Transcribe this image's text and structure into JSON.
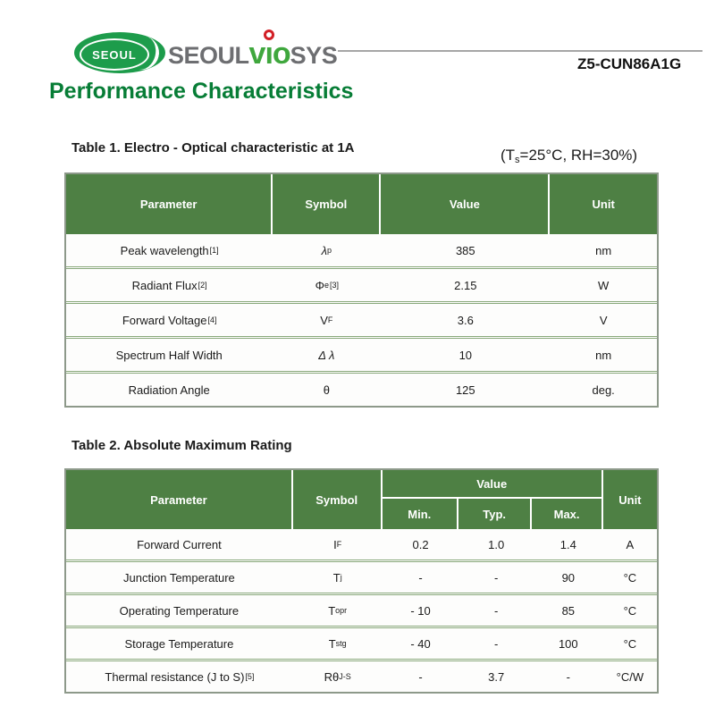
{
  "header": {
    "logo_badge_text": "SEOUL",
    "wordmark": {
      "seoul": "SEOUL",
      "v": "v",
      "i": "ı",
      "o": "o",
      "sys": "SYS"
    },
    "part_number": "Z5-CUN86A1G"
  },
  "page_title": "Performance Characteristics",
  "table1": {
    "title": "Table 1. Electro - Optical characteristic at 1A",
    "condition": {
      "pre": "(T",
      "sub": "s",
      "post": "=25°C, RH=30%)"
    },
    "columns": {
      "parameter": "Parameter",
      "symbol": "Symbol",
      "value": "Value",
      "unit": "Unit"
    },
    "rows": [
      {
        "parameter": "Peak wavelength",
        "param_sup": "[1]",
        "symbol_base": "λ",
        "symbol_sub": "p",
        "symbol_sup": "",
        "value": "385",
        "unit": "nm"
      },
      {
        "parameter": "Radiant Flux",
        "param_sup": "[2]",
        "symbol_base": "Φ",
        "symbol_sub": "e",
        "symbol_sup": "[3]",
        "value": "2.15",
        "unit": "W"
      },
      {
        "parameter": "Forward Voltage",
        "param_sup": "[4]",
        "symbol_base": "V",
        "symbol_sub": "F",
        "symbol_sup": "",
        "value": "3.6",
        "unit": "V"
      },
      {
        "parameter": "Spectrum Half Width",
        "param_sup": "",
        "symbol_base": "Δ λ",
        "symbol_sub": "",
        "symbol_sup": "",
        "value": "10",
        "unit": "nm"
      },
      {
        "parameter": "Radiation Angle",
        "param_sup": "",
        "symbol_base": "θ",
        "symbol_sub": "",
        "symbol_sup": "",
        "value": "125",
        "unit": "deg."
      }
    ]
  },
  "table2": {
    "title": "Table 2. Absolute Maximum Rating",
    "columns": {
      "parameter": "Parameter",
      "symbol": "Symbol",
      "value_group": "Value",
      "min": "Min.",
      "typ": "Typ.",
      "max": "Max.",
      "unit": "Unit"
    },
    "rows": [
      {
        "parameter": "Forward Current",
        "param_sup": "",
        "symbol_base": "I",
        "symbol_sub": "F",
        "min": "0.2",
        "typ": "1.0",
        "max": "1.4",
        "unit": "A"
      },
      {
        "parameter": "Junction Temperature",
        "param_sup": "",
        "symbol_base": "T",
        "symbol_sub": "j",
        "min": "-",
        "typ": "-",
        "max": "90",
        "unit": "°C"
      },
      {
        "parameter": "Operating Temperature",
        "param_sup": "",
        "symbol_base": "T",
        "symbol_sub": "opr",
        "min": "- 10",
        "typ": "-",
        "max": "85",
        "unit": "°C"
      },
      {
        "parameter": "Storage  Temperature",
        "param_sup": "",
        "symbol_base": "T",
        "symbol_sub": "stg",
        "min": "- 40",
        "typ": "-",
        "max": "100",
        "unit": "°C"
      },
      {
        "parameter": "Thermal resistance (J to S)",
        "param_sup": "[5]",
        "symbol_base": "Rθ",
        "symbol_sub": "J-S",
        "min": "-",
        "typ": "3.7",
        "max": "-",
        "unit": "°C/W"
      }
    ]
  },
  "colors": {
    "brand_green": "#1d9c4b",
    "wordmark_green": "#3fa73d",
    "wordmark_gray": "#6d6e71",
    "accent_red": "#d21f26",
    "table_header_green": "#4e8044",
    "title_green": "#077d36",
    "row_divider_green": "#8aa97c"
  }
}
